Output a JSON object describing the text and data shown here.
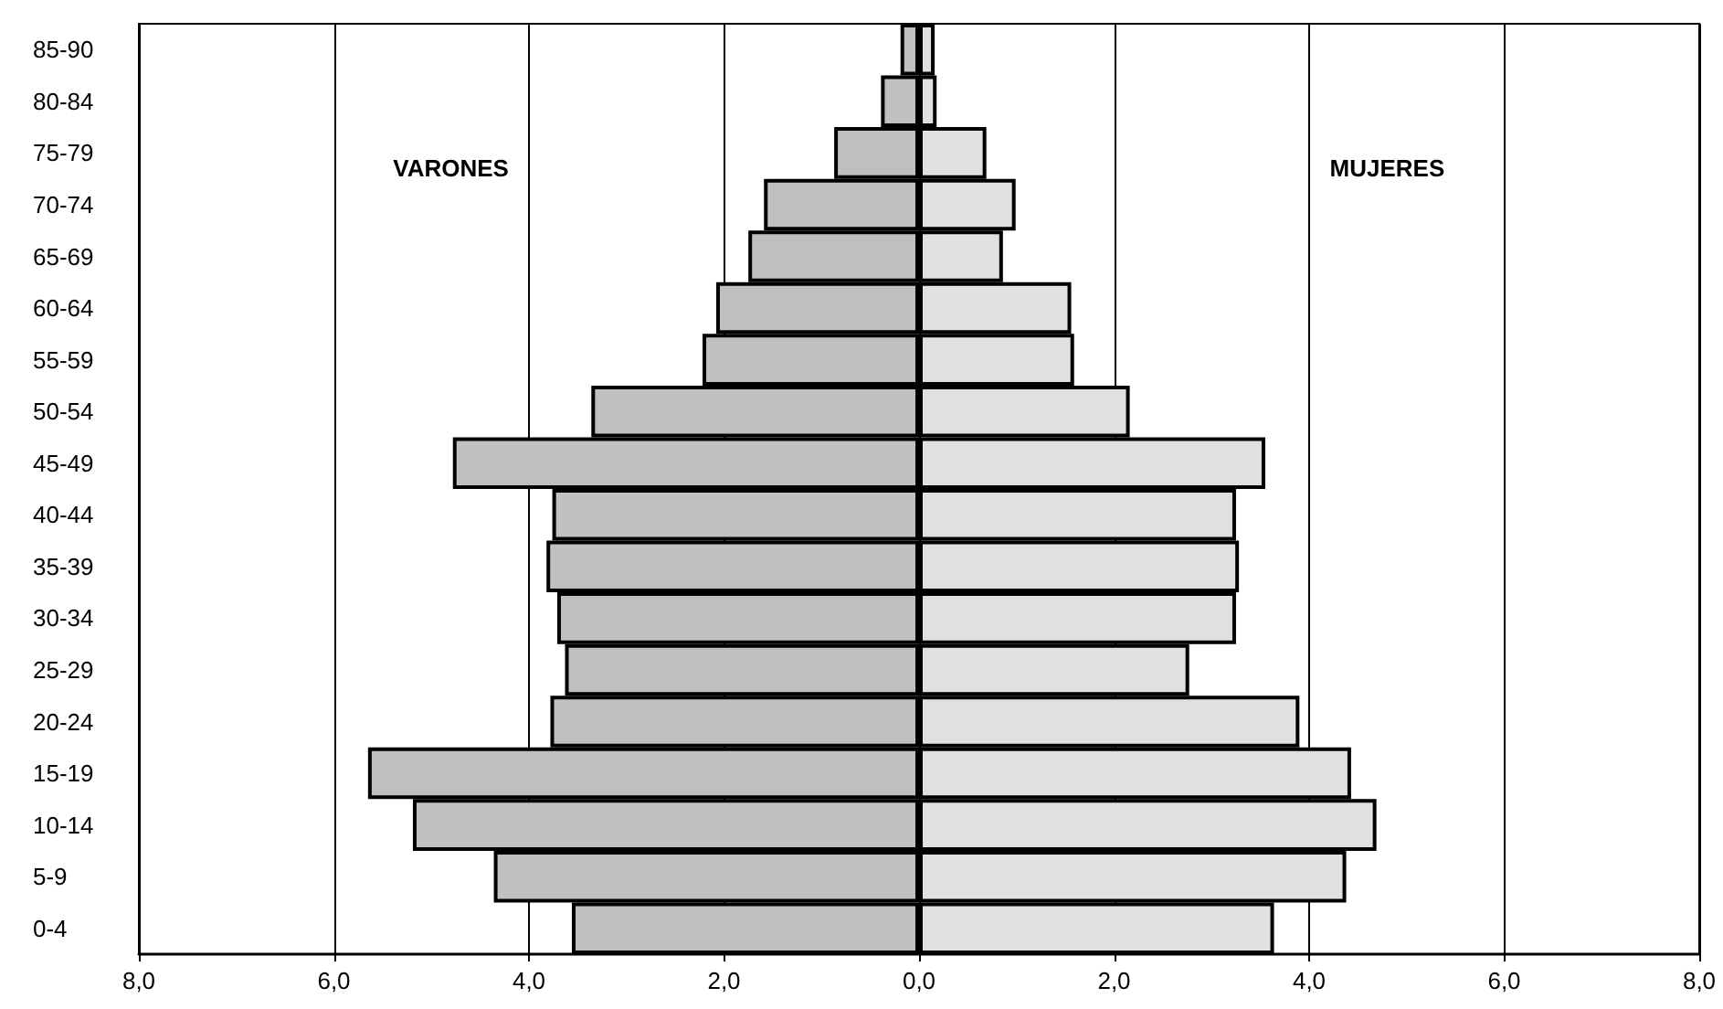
{
  "chart_data": {
    "type": "bar",
    "orientation": "horizontal",
    "categories": [
      "85-90",
      "80-84",
      "75-79",
      "70-74",
      "65-69",
      "60-64",
      "55-59",
      "50-54",
      "45-49",
      "40-44",
      "35-39",
      "30-34",
      "25-29",
      "20-24",
      "15-19",
      "10-14",
      "5-9",
      "0-4"
    ],
    "series": [
      {
        "color": "#c0c0c0",
        "values": [
          -0.19,
          -0.39,
          -0.87,
          -1.59,
          -1.75,
          -2.08,
          -2.22,
          -3.36,
          -4.78,
          -3.76,
          -3.82,
          -3.71,
          -3.63,
          -3.78,
          -5.65,
          -5.19,
          -4.36,
          -3.56
        ]
      },
      {
        "color": "#e0e0e0",
        "values": [
          0.16,
          0.18,
          0.69,
          0.99,
          0.86,
          1.56,
          1.59,
          2.16,
          3.55,
          3.25,
          3.28,
          3.25,
          2.77,
          3.9,
          4.43,
          4.69,
          4.38,
          3.64
        ]
      }
    ],
    "xlim": [
      -8,
      8
    ],
    "xticks": [
      {
        "value": -8,
        "label": "8,0"
      },
      {
        "value": -6,
        "label": "6,0"
      },
      {
        "value": -4,
        "label": "4,0"
      },
      {
        "value": -2,
        "label": "2,0"
      },
      {
        "value": 0,
        "label": "0,0"
      },
      {
        "value": 2,
        "label": "2,0"
      },
      {
        "value": 4,
        "label": "4,0"
      },
      {
        "value": 6,
        "label": "6,0"
      },
      {
        "value": 8,
        "label": "8,0"
      }
    ],
    "stacked": true,
    "annotations": [
      "VARONES",
      "MUJERES"
    ],
    "grid": "x"
  }
}
